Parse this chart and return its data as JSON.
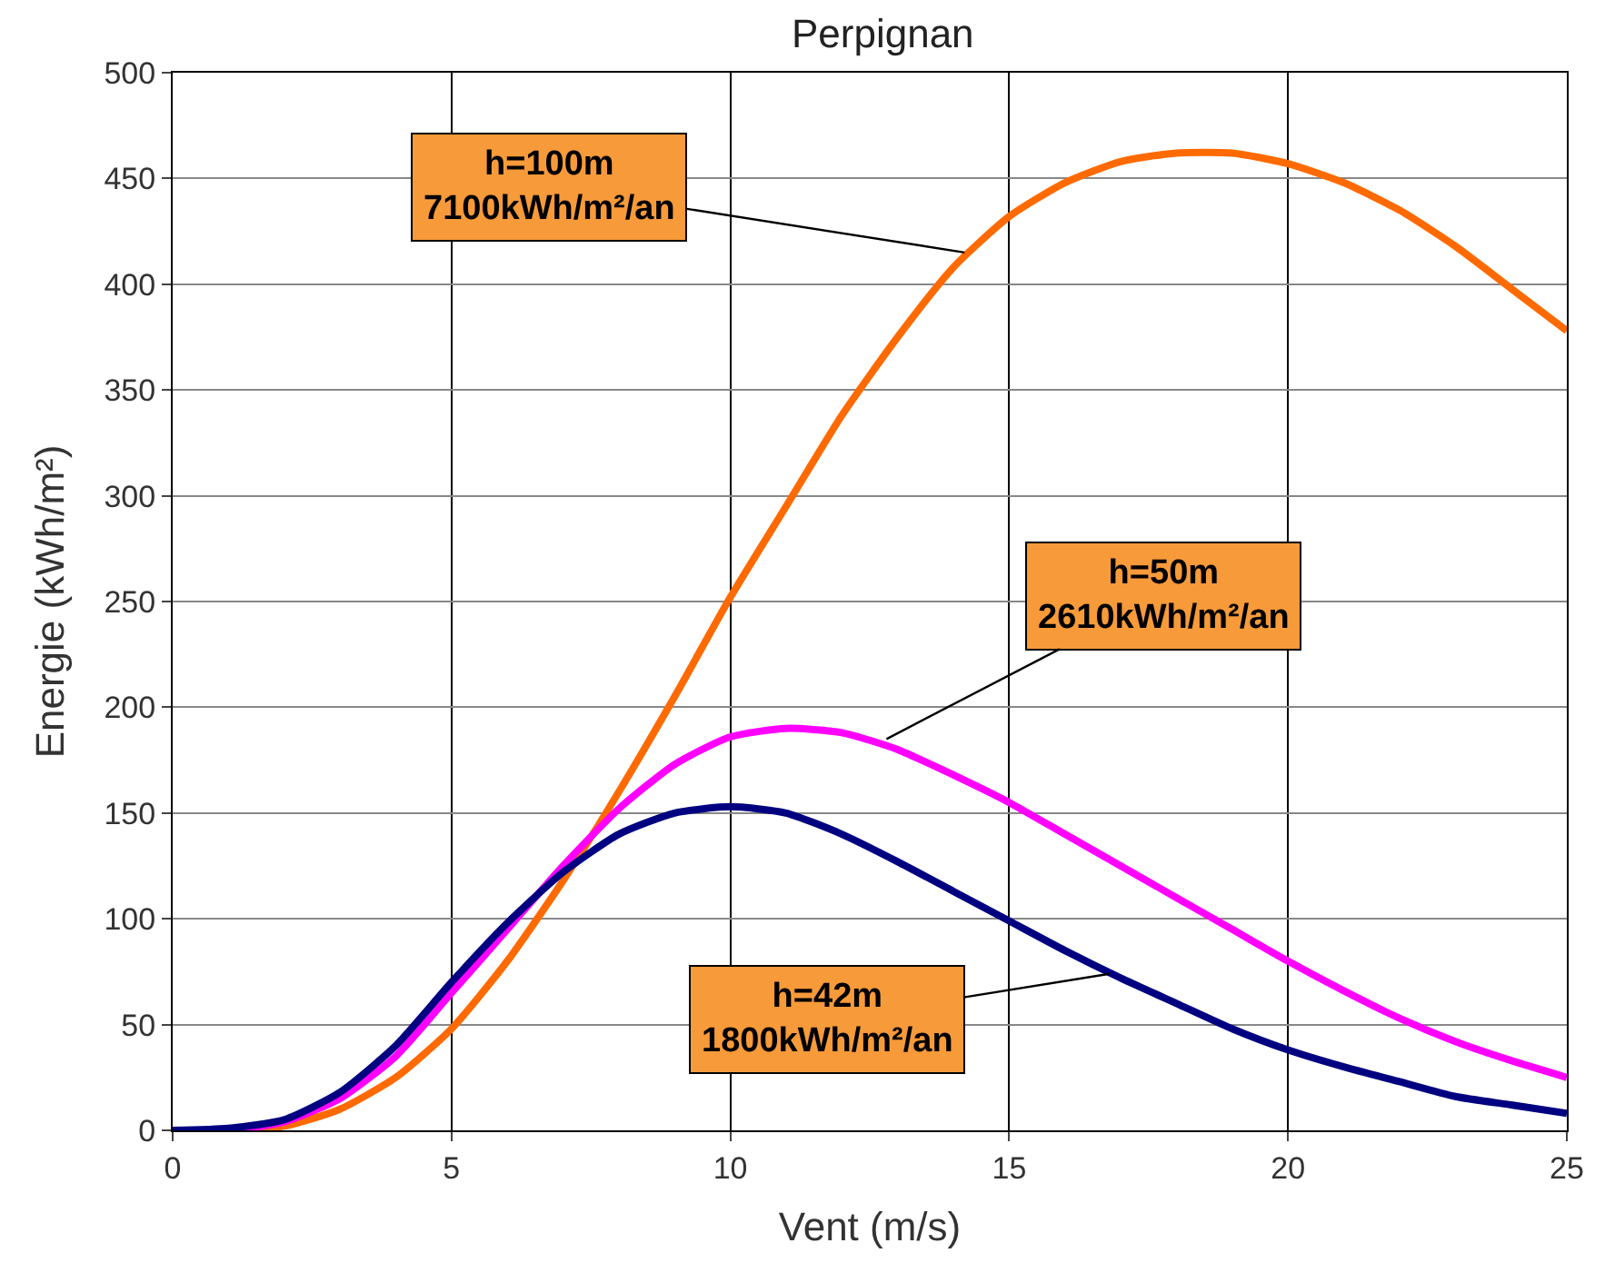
{
  "chart_data": {
    "type": "line",
    "title": "Perpignan",
    "xlabel": "Vent (m/s)",
    "ylabel": "Energie (kWh/m²)",
    "x": [
      0,
      1,
      2,
      3,
      4,
      5,
      6,
      7,
      8,
      9,
      10,
      11,
      12,
      13,
      14,
      15,
      16,
      17,
      18,
      19,
      20,
      21,
      22,
      23,
      24,
      25
    ],
    "series": [
      {
        "color": "#ff6a00",
        "values": [
          0,
          0,
          2,
          10,
          25,
          48,
          80,
          118,
          160,
          205,
          252,
          295,
          338,
          375,
          408,
          432,
          448,
          458,
          462,
          462,
          457,
          448,
          435,
          418,
          398,
          378
        ]
      },
      {
        "color": "#ff00ff",
        "values": [
          0,
          0,
          4,
          15,
          35,
          65,
          95,
          125,
          152,
          173,
          186,
          190,
          188,
          180,
          168,
          155,
          140,
          125,
          110,
          95,
          80,
          66,
          53,
          42,
          33,
          25
        ]
      },
      {
        "color": "#000080",
        "values": [
          0,
          1,
          5,
          18,
          40,
          70,
          98,
          122,
          140,
          150,
          153,
          150,
          140,
          127,
          113,
          99,
          85,
          72,
          60,
          48,
          38,
          30,
          23,
          16,
          12,
          8
        ]
      }
    ],
    "annotations": [
      {
        "text": "h=100m\n7100kWh/m²/an",
        "x": 14.2,
        "y": 415
      },
      {
        "text": "h=50m\n2610kWh/m²/an",
        "x": 12.8,
        "y": 185
      },
      {
        "text": "h=42m\n1800kWh/m²/an",
        "x": 16.8,
        "y": 74
      }
    ],
    "xlim": [
      0,
      25
    ],
    "xticks": [
      0,
      5,
      10,
      15,
      20,
      25
    ],
    "ylim": [
      0,
      500
    ],
    "yticks": [
      0,
      50,
      100,
      150,
      200,
      250,
      300,
      350,
      400,
      450,
      500
    ],
    "grid": true,
    "marker": "none",
    "line_style": "solid"
  }
}
